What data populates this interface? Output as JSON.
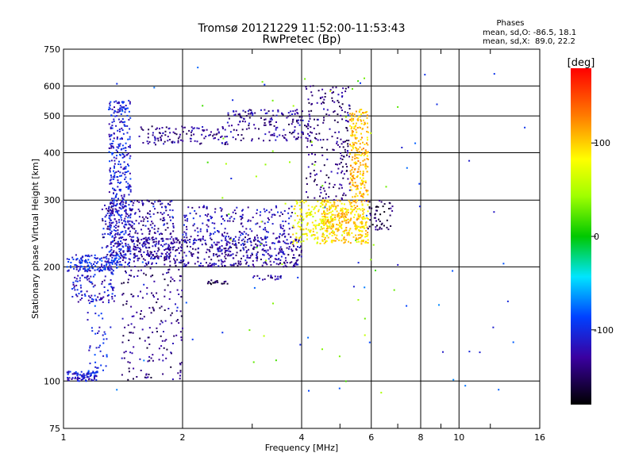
{
  "chart_data": {
    "type": "scatter",
    "title": "Tromsø 20121229 11:52:00-11:53:43",
    "subtitle": "RwPretec (Bp)",
    "xlabel": "Frequency [MHz]",
    "ylabel": "Stationary phase Virtual Height [km]",
    "x_scale": "log",
    "y_scale": "log",
    "xlim": [
      1,
      16
    ],
    "ylim": [
      75,
      750
    ],
    "x_ticks": [
      1,
      2,
      4,
      6,
      8,
      10,
      16
    ],
    "x_ticks_minor": [
      3,
      5,
      7,
      9,
      12
    ],
    "y_ticks": [
      75,
      100,
      200,
      300,
      400,
      500,
      600,
      750
    ],
    "grid": true,
    "info": {
      "heading": "Phases",
      "line1": "mean, sd,O: -86.5, 18.1",
      "line2": "mean, sd,X:  89.0, 22.2"
    },
    "colorbar": {
      "label": "[deg]",
      "range": [
        -180,
        180
      ],
      "ticks": [
        100,
        0,
        -100
      ],
      "ticks_text": [
        "100",
        "0",
        "-100"
      ]
    },
    "clusters": [
      {
        "x": [
          1.02,
          1.22
        ],
        "y": [
          100,
          106
        ],
        "phase": -110,
        "n": 90
      },
      {
        "x": [
          1.05,
          1.35
        ],
        "y": [
          160,
          200
        ],
        "phase": -115,
        "n": 120
      },
      {
        "x": [
          1.02,
          1.4
        ],
        "y": [
          195,
          215
        ],
        "phase": -100,
        "n": 150
      },
      {
        "x": [
          1.3,
          1.48
        ],
        "y": [
          200,
          550
        ],
        "phase": -108,
        "n": 420
      },
      {
        "x": [
          1.25,
          1.9
        ],
        "y": [
          210,
          300
        ],
        "phase": -128,
        "n": 300
      },
      {
        "x": [
          1.4,
          2.0
        ],
        "y": [
          100,
          200
        ],
        "phase": -140,
        "n": 180
      },
      {
        "x": [
          1.55,
          2.6
        ],
        "y": [
          420,
          470
        ],
        "phase": -135,
        "n": 120
      },
      {
        "x": [
          2.6,
          4.2
        ],
        "y": [
          430,
          520
        ],
        "phase": -132,
        "n": 170
      },
      {
        "x": [
          1.5,
          4.0
        ],
        "y": [
          200,
          240
        ],
        "phase": -130,
        "n": 500
      },
      {
        "x": [
          2.0,
          3.8
        ],
        "y": [
          230,
          290
        ],
        "phase": -120,
        "n": 220
      },
      {
        "x": [
          3.8,
          4.8
        ],
        "y": [
          230,
          300
        ],
        "phase": 80,
        "n": 160
      },
      {
        "x": [
          4.5,
          5.9
        ],
        "y": [
          230,
          300
        ],
        "phase": 100,
        "n": 360
      },
      {
        "x": [
          5.3,
          5.9
        ],
        "y": [
          300,
          520
        ],
        "phase": 105,
        "n": 230
      },
      {
        "x": [
          4.1,
          5.3
        ],
        "y": [
          300,
          600
        ],
        "phase": -140,
        "n": 200
      },
      {
        "x": [
          5.8,
          6.8
        ],
        "y": [
          250,
          300
        ],
        "phase": -150,
        "n": 50
      },
      {
        "x": [
          1.15,
          1.3
        ],
        "y": [
          105,
          160
        ],
        "phase": -100,
        "n": 40
      },
      {
        "x": [
          2.3,
          2.6
        ],
        "y": [
          180,
          185
        ],
        "phase": -160,
        "n": 20
      },
      {
        "x": [
          3.0,
          3.6
        ],
        "y": [
          185,
          190
        ],
        "phase": -130,
        "n": 20
      },
      {
        "x": [
          1.2,
          15
        ],
        "y": [
          90,
          700
        ],
        "phase": -90,
        "n": 60
      },
      {
        "x": [
          2.2,
          7
        ],
        "y": [
          90,
          650
        ],
        "phase": 40,
        "n": 50
      }
    ]
  }
}
